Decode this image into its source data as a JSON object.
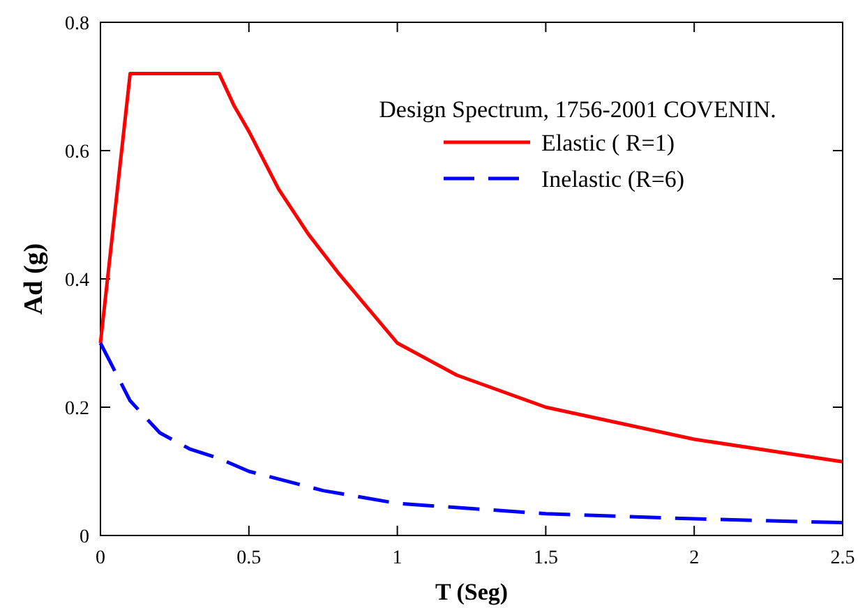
{
  "chart_data": {
    "type": "line",
    "xlabel": "T (Seg)",
    "ylabel": "Ad (g)",
    "legend_title": "Design Spectrum, 1756-2001 COVENIN.",
    "legend": "top right",
    "grid": false,
    "marker": "none",
    "xlim": [
      0,
      2.5
    ],
    "xticks": [
      0,
      0.5,
      1,
      1.5,
      2,
      2.5
    ],
    "ylim": [
      0,
      0.8
    ],
    "yticks": [
      0,
      0.2,
      0.4,
      0.6,
      0.8
    ],
    "series": [
      {
        "name": "Elastic ( R=1)",
        "color": "#ff0000",
        "line_style": "solid",
        "x": [
          0,
          0.1,
          0.4,
          0.45,
          0.5,
          0.6,
          0.7,
          0.8,
          1.0,
          1.2,
          1.5,
          2.0,
          2.5
        ],
        "values": [
          0.3,
          0.72,
          0.72,
          0.67,
          0.63,
          0.54,
          0.47,
          0.41,
          0.3,
          0.25,
          0.2,
          0.15,
          0.115
        ]
      },
      {
        "name": "Inelastic (R=6)",
        "color": "#0000ff",
        "line_style": "dashed",
        "x": [
          0,
          0.1,
          0.2,
          0.3,
          0.4,
          0.5,
          0.75,
          1.0,
          1.5,
          2.0,
          2.5
        ],
        "values": [
          0.3,
          0.21,
          0.16,
          0.135,
          0.12,
          0.1,
          0.07,
          0.05,
          0.034,
          0.026,
          0.02
        ]
      }
    ]
  }
}
